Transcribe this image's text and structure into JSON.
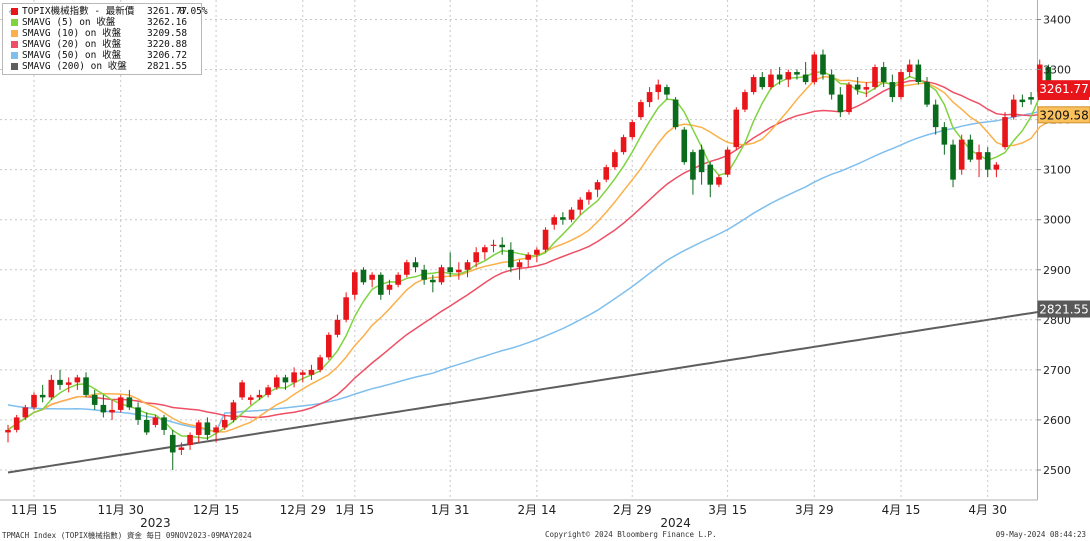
{
  "chart_data": {
    "type": "candlestick",
    "ylim": [
      2420,
      3420
    ],
    "yticks": [
      2500,
      2600,
      2700,
      2800,
      2900,
      3000,
      3100,
      3200,
      3300,
      3400
    ],
    "xticks": [
      {
        "label": "11月 15",
        "i": 3
      },
      {
        "label": "11月 30",
        "i": 13
      },
      {
        "label": "12月 15",
        "i": 24
      },
      {
        "label": "12月 29",
        "i": 34
      },
      {
        "label": "1月 15",
        "i": 40
      },
      {
        "label": "1月 31",
        "i": 51
      },
      {
        "label": "2月 14",
        "i": 61
      },
      {
        "label": "2月 29",
        "i": 72
      },
      {
        "label": "3月 15",
        "i": 83
      },
      {
        "label": "3月 29",
        "i": 93
      },
      {
        "label": "4月 15",
        "i": 103
      },
      {
        "label": "4月 30",
        "i": 113
      }
    ],
    "year_labels": [
      {
        "label": "2023",
        "i": 17
      },
      {
        "label": "2024",
        "i": 77
      }
    ],
    "candles": [
      [
        2575,
        2590,
        2555,
        2580
      ],
      [
        2580,
        2610,
        2575,
        2605
      ],
      [
        2605,
        2630,
        2600,
        2625
      ],
      [
        2625,
        2655,
        2620,
        2650
      ],
      [
        2650,
        2670,
        2635,
        2645
      ],
      [
        2645,
        2690,
        2640,
        2680
      ],
      [
        2680,
        2700,
        2660,
        2670
      ],
      [
        2670,
        2685,
        2655,
        2675
      ],
      [
        2675,
        2690,
        2660,
        2685
      ],
      [
        2685,
        2695,
        2645,
        2650
      ],
      [
        2650,
        2660,
        2620,
        2630
      ],
      [
        2630,
        2650,
        2605,
        2615
      ],
      [
        2615,
        2640,
        2600,
        2620
      ],
      [
        2620,
        2650,
        2615,
        2645
      ],
      [
        2645,
        2660,
        2620,
        2625
      ],
      [
        2625,
        2635,
        2590,
        2600
      ],
      [
        2600,
        2615,
        2570,
        2575
      ],
      [
        2590,
        2610,
        2585,
        2605
      ],
      [
        2605,
        2610,
        2570,
        2580
      ],
      [
        2570,
        2580,
        2500,
        2535
      ],
      [
        2540,
        2555,
        2530,
        2545
      ],
      [
        2550,
        2575,
        2540,
        2570
      ],
      [
        2570,
        2600,
        2555,
        2595
      ],
      [
        2595,
        2605,
        2560,
        2570
      ],
      [
        2575,
        2590,
        2555,
        2585
      ],
      [
        2585,
        2610,
        2580,
        2600
      ],
      [
        2600,
        2640,
        2595,
        2635
      ],
      [
        2645,
        2680,
        2640,
        2675
      ],
      [
        2640,
        2650,
        2630,
        2645
      ],
      [
        2645,
        2660,
        2640,
        2650
      ],
      [
        2650,
        2670,
        2645,
        2665
      ],
      [
        2665,
        2690,
        2660,
        2685
      ],
      [
        2685,
        2690,
        2660,
        2675
      ],
      [
        2675,
        2705,
        2665,
        2695
      ],
      [
        2690,
        2700,
        2675,
        2695
      ],
      [
        2690,
        2710,
        2680,
        2700
      ],
      [
        2700,
        2730,
        2695,
        2725
      ],
      [
        2725,
        2775,
        2720,
        2770
      ],
      [
        2770,
        2810,
        2765,
        2800
      ],
      [
        2800,
        2855,
        2795,
        2845
      ],
      [
        2850,
        2900,
        2840,
        2895
      ],
      [
        2900,
        2905,
        2870,
        2875
      ],
      [
        2880,
        2895,
        2865,
        2890
      ],
      [
        2890,
        2895,
        2840,
        2850
      ],
      [
        2860,
        2880,
        2850,
        2870
      ],
      [
        2870,
        2895,
        2865,
        2890
      ],
      [
        2890,
        2920,
        2885,
        2915
      ],
      [
        2915,
        2925,
        2895,
        2905
      ],
      [
        2900,
        2910,
        2870,
        2880
      ],
      [
        2880,
        2890,
        2855,
        2875
      ],
      [
        2875,
        2910,
        2870,
        2905
      ],
      [
        2905,
        2935,
        2885,
        2895
      ],
      [
        2895,
        2915,
        2880,
        2900
      ],
      [
        2900,
        2920,
        2885,
        2915
      ],
      [
        2915,
        2945,
        2905,
        2935
      ],
      [
        2935,
        2950,
        2920,
        2945
      ],
      [
        2950,
        2960,
        2935,
        2950
      ],
      [
        2950,
        2965,
        2930,
        2945
      ],
      [
        2940,
        2955,
        2895,
        2905
      ],
      [
        2905,
        2920,
        2880,
        2915
      ],
      [
        2920,
        2935,
        2905,
        2930
      ],
      [
        2930,
        2945,
        2915,
        2940
      ],
      [
        2940,
        2985,
        2935,
        2980
      ],
      [
        2990,
        3010,
        2980,
        3005
      ],
      [
        3005,
        3015,
        2990,
        3000
      ],
      [
        3000,
        3025,
        2995,
        3020
      ],
      [
        3020,
        3045,
        3010,
        3040
      ],
      [
        3040,
        3060,
        3030,
        3055
      ],
      [
        3060,
        3080,
        3045,
        3075
      ],
      [
        3080,
        3110,
        3075,
        3105
      ],
      [
        3105,
        3140,
        3100,
        3135
      ],
      [
        3135,
        3170,
        3130,
        3165
      ],
      [
        3165,
        3200,
        3160,
        3195
      ],
      [
        3205,
        3240,
        3200,
        3235
      ],
      [
        3235,
        3265,
        3225,
        3255
      ],
      [
        3255,
        3280,
        3240,
        3270
      ],
      [
        3265,
        3270,
        3240,
        3250
      ],
      [
        3240,
        3245,
        3180,
        3185
      ],
      [
        3180,
        3185,
        3110,
        3115
      ],
      [
        3135,
        3140,
        3050,
        3080
      ],
      [
        3140,
        3150,
        3070,
        3095
      ],
      [
        3110,
        3115,
        3045,
        3070
      ],
      [
        3070,
        3090,
        3065,
        3085
      ],
      [
        3090,
        3145,
        3085,
        3140
      ],
      [
        3145,
        3225,
        3140,
        3220
      ],
      [
        3220,
        3260,
        3215,
        3255
      ],
      [
        3255,
        3290,
        3250,
        3285
      ],
      [
        3285,
        3295,
        3260,
        3265
      ],
      [
        3265,
        3300,
        3260,
        3290
      ],
      [
        3290,
        3305,
        3270,
        3280
      ],
      [
        3280,
        3300,
        3265,
        3295
      ],
      [
        3295,
        3300,
        3280,
        3290
      ],
      [
        3290,
        3315,
        3270,
        3275
      ],
      [
        3275,
        3335,
        3270,
        3330
      ],
      [
        3330,
        3340,
        3280,
        3290
      ],
      [
        3290,
        3300,
        3240,
        3250
      ],
      [
        3250,
        3265,
        3205,
        3215
      ],
      [
        3215,
        3275,
        3210,
        3270
      ],
      [
        3270,
        3285,
        3250,
        3260
      ],
      [
        3260,
        3275,
        3245,
        3265
      ],
      [
        3265,
        3310,
        3260,
        3305
      ],
      [
        3305,
        3315,
        3265,
        3275
      ],
      [
        3275,
        3290,
        3235,
        3245
      ],
      [
        3245,
        3300,
        3240,
        3295
      ],
      [
        3295,
        3320,
        3285,
        3310
      ],
      [
        3310,
        3320,
        3270,
        3275
      ],
      [
        3275,
        3285,
        3225,
        3230
      ],
      [
        3230,
        3240,
        3170,
        3185
      ],
      [
        3185,
        3195,
        3130,
        3150
      ],
      [
        3150,
        3160,
        3065,
        3080
      ],
      [
        3100,
        3170,
        3090,
        3160
      ],
      [
        3160,
        3170,
        3115,
        3120
      ],
      [
        3120,
        3150,
        3085,
        3135
      ],
      [
        3135,
        3145,
        3085,
        3100
      ],
      [
        3100,
        3115,
        3085,
        3110
      ],
      [
        3145,
        3215,
        3140,
        3205
      ],
      [
        3205,
        3250,
        3200,
        3240
      ],
      [
        3240,
        3250,
        3225,
        3235
      ],
      [
        3245,
        3255,
        3230,
        3240
      ],
      [
        3255,
        3320,
        3250,
        3310
      ],
      [
        3305,
        3310,
        3255,
        3265
      ],
      [
        3265,
        3270,
        3250,
        3261.77
      ]
    ],
    "series": [
      {
        "name": "SMAVG (5)",
        "last": 3262.16
      },
      {
        "name": "SMAVG (10)",
        "last": 3209.58
      },
      {
        "name": "SMAVG (20)",
        "last": 3220.88
      },
      {
        "name": "SMAVG (50)",
        "last": 3206.72
      },
      {
        "name": "SMAVG (200)",
        "last": 2821.55
      }
    ],
    "price_series": {
      "name": "TOPIX機械指數 - 最新價",
      "last": 3261.77,
      "change": "0.05%"
    },
    "axis_flags": [
      {
        "label": "3261.77",
        "value": 3261.77,
        "fill": "#e8161b",
        "text_color": "#ffffff",
        "border": "#e8161b"
      },
      {
        "label": "3209.58",
        "value": 3209.58,
        "fill": "#fbc15c",
        "text_color": "#111111",
        "border": "#d0902a"
      },
      {
        "label": "2821.55",
        "value": 2821.55,
        "fill": "#595959",
        "text_color": "#ffffff",
        "border": "#595959"
      }
    ],
    "colors": {
      "up": "#e8161b",
      "down": "#0a6b1c",
      "sma5": "#7ed43f",
      "sma10": "#fbb04a",
      "sma20": "#ee4f65",
      "sma50": "#7fbfee",
      "sma200": "#5e5e5e",
      "grid": "#c8c8c8"
    }
  },
  "legend": {
    "rows": [
      {
        "label": "TOPIX機械指數 - 最新價",
        "value": "3261.77",
        "change": "0.05%",
        "color": "#e8161b"
      },
      {
        "label": "SMAVG (5)  on 收盤",
        "value": "3262.16",
        "change": "",
        "color": "#7ed43f"
      },
      {
        "label": "SMAVG (10)  on 收盤",
        "value": "3209.58",
        "change": "",
        "color": "#fbb04a"
      },
      {
        "label": "SMAVG (20)  on 收盤",
        "value": "3220.88",
        "change": "",
        "color": "#ee4f65"
      },
      {
        "label": "SMAVG (50)  on 收盤",
        "value": "3206.72",
        "change": "",
        "color": "#7fbfee"
      },
      {
        "label": "SMAVG (200)  on 收盤",
        "value": "2821.55",
        "change": "",
        "color": "#5e5e5e"
      }
    ]
  },
  "footer": {
    "left": "TPMACH Index (TOPIX機械指數) 資金  每日 09NOV2023-09MAY2024",
    "center": "Copyright© 2024 Bloomberg Finance L.P.",
    "right": "09-May-2024 08:44:23"
  }
}
